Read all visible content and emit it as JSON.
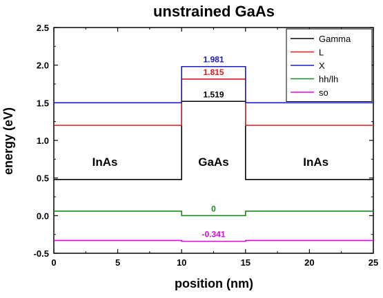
{
  "chart_data": {
    "type": "line",
    "title": "unstrained GaAs",
    "xlabel": "position (nm)",
    "ylabel": "energy (eV)",
    "xlim": [
      0,
      25
    ],
    "ylim": [
      -0.5,
      2.5
    ],
    "xticks": [
      0,
      5,
      10,
      15,
      20,
      25
    ],
    "xtick_labels": [
      "0",
      "5",
      "10",
      "15",
      "20",
      "25"
    ],
    "yticks": [
      -0.5,
      0.0,
      0.5,
      1.0,
      1.5,
      2.0,
      2.5
    ],
    "ytick_labels": [
      "-0.5",
      "0.0",
      "0.5",
      "1.0",
      "1.5",
      "2.0",
      "2.5"
    ],
    "grid": false,
    "legend_position": "top-right",
    "series": [
      {
        "name": "Gamma",
        "color": "#000000",
        "x": [
          0,
          10,
          10,
          15,
          15,
          25
        ],
        "y": [
          0.48,
          0.48,
          1.519,
          1.519,
          0.48,
          0.48
        ]
      },
      {
        "name": "L",
        "color": "#e41a1c",
        "x": [
          0,
          10,
          10,
          15,
          15,
          25
        ],
        "y": [
          1.2,
          1.2,
          1.815,
          1.815,
          1.2,
          1.2
        ]
      },
      {
        "name": "X",
        "color": "#1a1acc",
        "x": [
          0,
          10,
          10,
          15,
          15,
          25
        ],
        "y": [
          1.5,
          1.5,
          1.981,
          1.981,
          1.5,
          1.5
        ]
      },
      {
        "name": "hh/lh",
        "color": "#1a8a1a",
        "x": [
          0,
          10,
          10,
          15,
          15,
          25
        ],
        "y": [
          0.06,
          0.06,
          0.0,
          0.0,
          0.06,
          0.06
        ]
      },
      {
        "name": "so",
        "color": "#e600e6",
        "x": [
          0,
          10,
          10,
          15,
          15,
          25
        ],
        "y": [
          -0.33,
          -0.33,
          -0.341,
          -0.341,
          -0.33,
          -0.33
        ]
      }
    ],
    "annotations": [
      {
        "text": "1.981",
        "x": 12.5,
        "y": 1.981,
        "color": "#1a1acc"
      },
      {
        "text": "1.815",
        "x": 12.5,
        "y": 1.815,
        "color": "#e41a1c"
      },
      {
        "text": "1.519",
        "x": 12.5,
        "y": 1.519,
        "color": "#000000"
      },
      {
        "text": "0",
        "x": 12.5,
        "y": 0.0,
        "color": "#1a8a1a"
      },
      {
        "text": "-0.341",
        "x": 12.5,
        "y": -0.341,
        "color": "#e600e6"
      }
    ],
    "region_labels": [
      {
        "text": "InAs",
        "x": 4.0,
        "y": 0.66
      },
      {
        "text": "GaAs",
        "x": 12.5,
        "y": 0.66
      },
      {
        "text": "InAs",
        "x": 20.5,
        "y": 0.66
      }
    ]
  }
}
